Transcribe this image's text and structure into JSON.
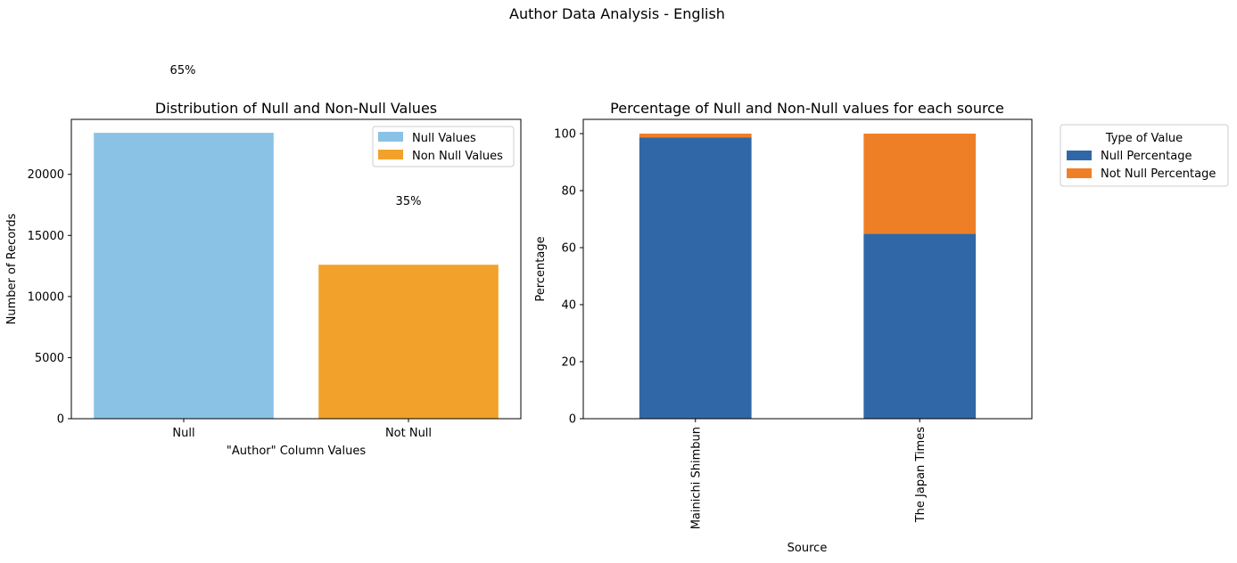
{
  "figure": {
    "suptitle": "Author Data Analysis - English"
  },
  "chart_data": [
    {
      "type": "bar",
      "title": "Distribution of Null and Non-Null Values",
      "xlabel": "\"Author\" Column Values",
      "ylabel": "Number of Records",
      "categories": [
        "Null",
        "Not Null"
      ],
      "values": [
        23400,
        12600
      ],
      "colors": [
        "#8ac2e5",
        "#f2a22a"
      ],
      "percent_labels": [
        "65%",
        "35%"
      ],
      "ylim": [
        0,
        24500
      ],
      "yticks": [
        0,
        5000,
        10000,
        15000,
        20000
      ],
      "legend": {
        "position": "top-right",
        "entries": [
          "Null Values",
          "Non Null Values"
        ]
      },
      "grid": false
    },
    {
      "type": "bar",
      "stacked": true,
      "title": "Percentage of Null and Non-Null values for each source",
      "xlabel": "Source",
      "ylabel": "Percentage",
      "categories": [
        "Mainichi Shimbun",
        "The Japan Times"
      ],
      "series": [
        {
          "name": "Null Percentage",
          "color": "#3068a7",
          "values": [
            98.7,
            64.9
          ]
        },
        {
          "name": "Not Null Percentage",
          "color": "#ef7f27",
          "values": [
            1.3,
            35.1
          ]
        }
      ],
      "ylim": [
        0,
        105
      ],
      "yticks": [
        0,
        20,
        40,
        60,
        80,
        100
      ],
      "legend": {
        "position": "outside-right",
        "title": "Type of Value"
      },
      "grid": false
    }
  ]
}
